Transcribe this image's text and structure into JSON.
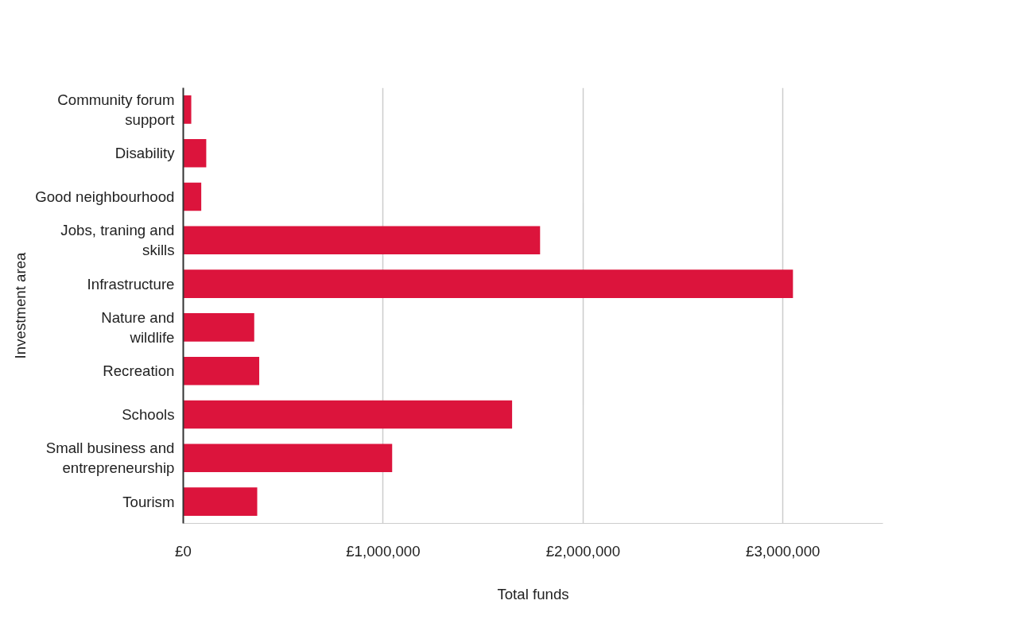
{
  "chart_data": {
    "type": "bar",
    "orientation": "horizontal",
    "xlabel": "Total funds",
    "ylabel": "Investment area",
    "categories": [
      "Community forum support",
      "Disability",
      "Good neighbourhood",
      "Jobs, traning and skills",
      "Infrastructure",
      "Nature and wildlife",
      "Recreation",
      "Schools",
      "Small business and entrepreneurship",
      "Tourism"
    ],
    "values": [
      40000,
      115000,
      90000,
      1785000,
      3050000,
      355000,
      380000,
      1645000,
      1045000,
      370000
    ],
    "color": "#dc143c",
    "xticks": [
      {
        "value": 0,
        "label": "£0"
      },
      {
        "value": 1000000,
        "label": "£1,000,000"
      },
      {
        "value": 2000000,
        "label": "£2,000,000"
      },
      {
        "value": 3000000,
        "label": "£3,000,000"
      }
    ],
    "xlim": [
      0,
      3500000
    ],
    "grid": "x"
  }
}
